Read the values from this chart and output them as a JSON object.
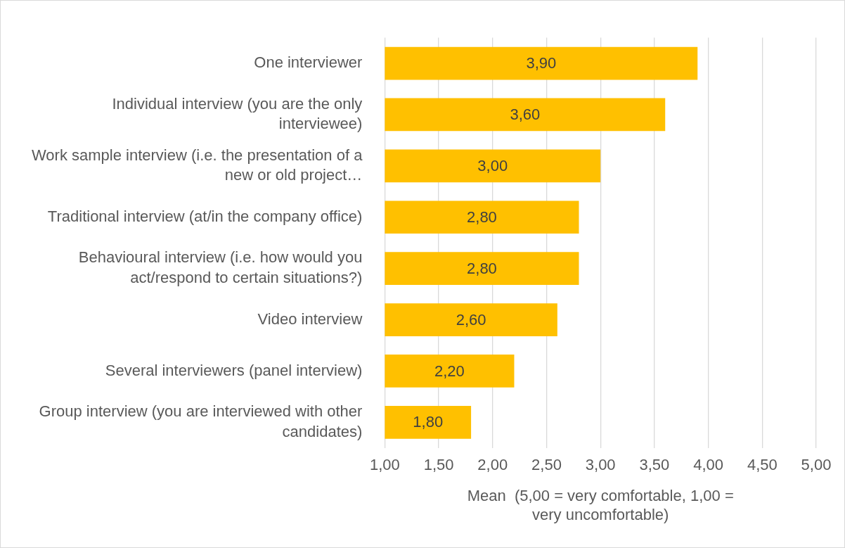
{
  "chart_data": {
    "type": "bar",
    "orientation": "horizontal",
    "xlabel": "Mean  (5,00 = very comfortable, 1,00 = very uncomfortable)",
    "categories": [
      "One interviewer",
      "Individual interview (you are the only interviewee)",
      "Work sample interview (i.e. the presentation of a new or old project…",
      "Traditional interview (at/in the company office)",
      "Behavioural interview (i.e. how would you act/respond to certain situations?)",
      "Video interview",
      "Several interviewers (panel interview)",
      "Group interview (you are interviewed with other candidates)"
    ],
    "values": [
      3.9,
      3.6,
      3.0,
      2.8,
      2.8,
      2.6,
      2.2,
      1.8
    ],
    "value_labels": [
      "3,90",
      "3,60",
      "3,00",
      "2,80",
      "2,80",
      "2,60",
      "2,20",
      "1,80"
    ],
    "color": "#ffc000",
    "xlim": [
      1,
      5
    ],
    "xticks": [
      {
        "value": 1,
        "label": "1,00"
      },
      {
        "value": 1.5,
        "label": "1,50"
      },
      {
        "value": 2,
        "label": "2,00"
      },
      {
        "value": 2.5,
        "label": "2,50"
      },
      {
        "value": 3,
        "label": "3,00"
      },
      {
        "value": 3.5,
        "label": "3,50"
      },
      {
        "value": 4,
        "label": "4,00"
      },
      {
        "value": 4.5,
        "label": "4,50"
      },
      {
        "value": 5,
        "label": "5,00"
      }
    ],
    "grid": "x",
    "legend": false
  }
}
